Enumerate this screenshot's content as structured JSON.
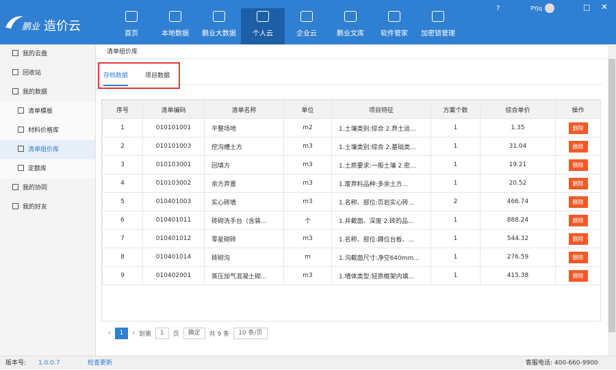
{
  "header": {
    "logo_brand": "鹏业",
    "logo_product": "造价云",
    "nav": [
      "首页",
      "本地数据",
      "鹏业大数据",
      "个人云",
      "企业云",
      "鹏业文库",
      "软件管家",
      "加密锁管理"
    ],
    "active_nav": 3,
    "user": "PYJq"
  },
  "sidebar": {
    "items": [
      {
        "label": "我的云盘",
        "level": 1
      },
      {
        "label": "回收站",
        "level": 1
      },
      {
        "label": "我的数据",
        "level": 1
      },
      {
        "label": "清单模板",
        "level": 2
      },
      {
        "label": "材料价格库",
        "level": 2
      },
      {
        "label": "清单组价库",
        "level": 2
      },
      {
        "label": "定额库",
        "level": 2
      },
      {
        "label": "我的协同",
        "level": 1
      },
      {
        "label": "我的好友",
        "level": 1
      }
    ],
    "active_item": 5
  },
  "breadcrumb": "清单组价库",
  "tabs": [
    "存档数据",
    "项目数据"
  ],
  "table": {
    "headers": [
      "序号",
      "清单编码",
      "清单名称",
      "单位",
      "项目特征",
      "方案个数",
      "综合单价",
      "操作"
    ],
    "rows": [
      [
        "1",
        "010101001",
        "平整场地",
        "m2",
        "1.土壤类别:综合 2.弃土运...",
        "1",
        "1.35",
        "删除"
      ],
      [
        "2",
        "010101003",
        "挖沟槽土方",
        "m3",
        "1.土壤类别:综合 2.基础类...",
        "1",
        "31.04",
        "删除"
      ],
      [
        "3",
        "010103001",
        "回填方",
        "m3",
        "1.土质要求:一般土壤 2.密...",
        "1",
        "19.21",
        "删除"
      ],
      [
        "4",
        "010103002",
        "余方弃置",
        "m3",
        "1.废弃料品种:多余土方...",
        "1",
        "20.52",
        "删除"
      ],
      [
        "5",
        "010401003",
        "实心砖墙",
        "m3",
        "1.名称、部位:页岩实心砖...",
        "2",
        "466.74",
        "删除"
      ],
      [
        "6",
        "010401011",
        "砖砌洗手台（含装...",
        "个",
        "1.井截面、深度 2.砖的品...",
        "1",
        "888.24",
        "删除"
      ],
      [
        "7",
        "010401012",
        "零星砌砖",
        "m3",
        "1.名称、部位:蹲位台板、...",
        "1",
        "544.32",
        "删除"
      ],
      [
        "8",
        "010401014",
        "砖砌沟",
        "m",
        "1.沟截面尺寸:净空640mm...",
        "1",
        "276.59",
        "删除"
      ],
      [
        "9",
        "010402001",
        "蒸压加气混凝土砌...",
        "m3",
        "1.墙体类型:轻质框架内填...",
        "1",
        "415.38",
        "删除"
      ]
    ]
  },
  "pagination": {
    "current": "1",
    "goto_prefix": "到第",
    "goto_value": "1",
    "goto_suffix": "页",
    "confirm": "确定",
    "total": "共 9 条",
    "page_size": "10 条/页"
  },
  "footer": {
    "version_label": "版本号:",
    "version": "1.0.0.7",
    "check_update": "检查更新",
    "hotline": "客服电话: 400-660-9900"
  }
}
